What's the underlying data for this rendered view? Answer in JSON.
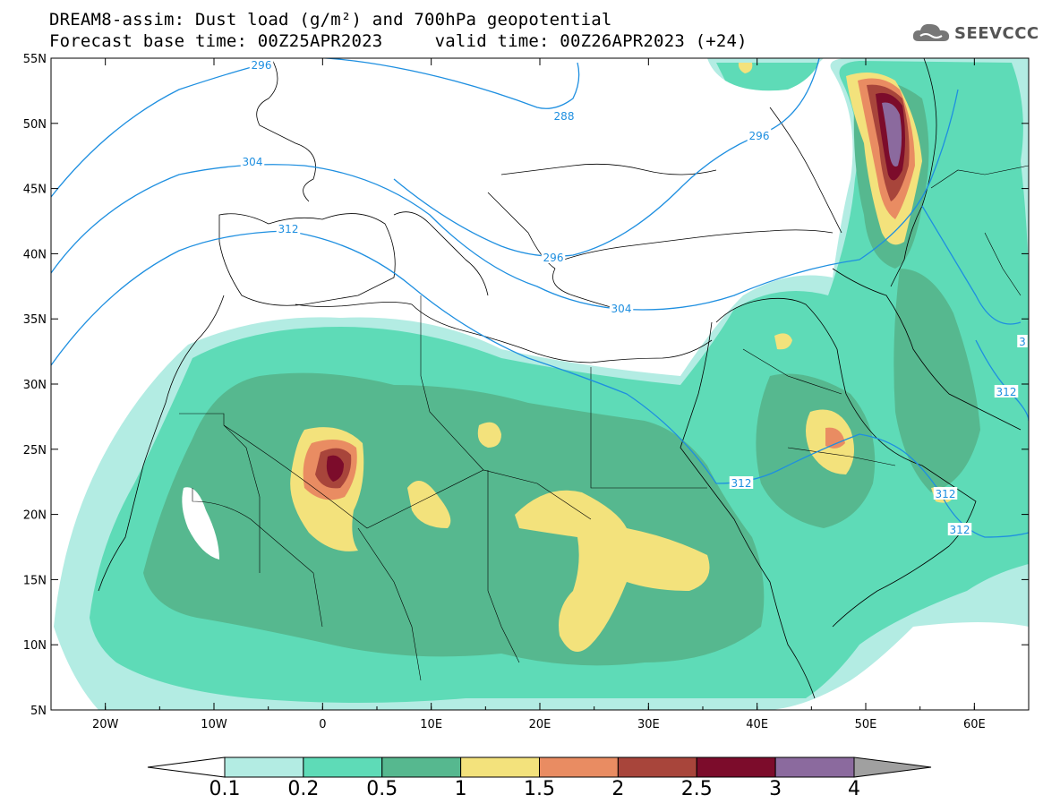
{
  "header": {
    "title_line1": "DREAM8-assim: Dust load (g/m²) and 700hPa geopotential",
    "title_line2": "Forecast base time: 00Z25APR2023     valid time: 00Z26APR2023 (+24)",
    "logo_text": "SEEVCCC"
  },
  "map": {
    "lat_labels": [
      "55N",
      "50N",
      "45N",
      "40N",
      "35N",
      "30N",
      "25N",
      "20N",
      "15N",
      "10N",
      "5N"
    ],
    "lon_labels": [
      "20W",
      "10W",
      "0",
      "10E",
      "20E",
      "30E",
      "40E",
      "50E",
      "60E"
    ],
    "lon_range": [
      -25,
      65
    ],
    "lat_range": [
      5,
      55
    ],
    "contour_labels": [
      "296",
      "288",
      "296",
      "304",
      "312",
      "296",
      "304",
      "312",
      "312",
      "312",
      "312",
      "3"
    ]
  },
  "colorbar": {
    "labels": [
      "0.1",
      "0.2",
      "0.5",
      "1",
      "1.5",
      "2",
      "2.5",
      "3",
      "4"
    ],
    "colors": [
      "#ffffff",
      "#b3ece3",
      "#5edbb7",
      "#56b88f",
      "#f3e27c",
      "#e98c62",
      "#a8453b",
      "#7c0c2b",
      "#8b6a9e",
      "#a0a0a0"
    ]
  },
  "colors": {
    "contour": "#1e8fe0",
    "dust_0_1": "#b3ece3",
    "dust_0_2": "#5edbb7",
    "dust_0_5": "#56b88f",
    "dust_1": "#f3e27c",
    "dust_1_5": "#e98c62",
    "dust_2": "#a8453b",
    "dust_2_5": "#7c0c2b",
    "dust_3": "#8b6a9e"
  }
}
